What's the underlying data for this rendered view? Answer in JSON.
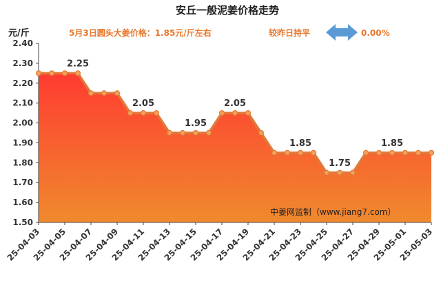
{
  "colors": {
    "line": "#e0793a",
    "marker_fill": "#f4a259",
    "area_top": "#ff3b30",
    "area_bottom": "#f08a2e",
    "subtitle": "#e8762b",
    "arrow": "#5b9bd5"
  },
  "header": {
    "title": "安丘一般泥姜价格走势",
    "subtitle_left": "5月3日圆头大姜价格：1.85元/斤左右",
    "subtitle_right": "较昨日持平",
    "change": "0.00%",
    "arrow_icon": "double-arrow-icon"
  },
  "watermark": "中姜网监制（www.jiang7.com）",
  "chart_data": {
    "type": "area",
    "title": "安丘一般泥姜价格走势",
    "ylabel": "元/斤",
    "xlabel": "",
    "ylim": [
      1.5,
      2.4
    ],
    "yticks": [
      "2.40",
      "2.30",
      "2.20",
      "2.10",
      "2.00",
      "1.90",
      "1.80",
      "1.70",
      "1.60",
      "1.50"
    ],
    "ytick_values": [
      2.4,
      2.3,
      2.2,
      2.1,
      2.0,
      1.9,
      1.8,
      1.7,
      1.6,
      1.5
    ],
    "x_labels": [
      "25-04-03",
      "25-04-05",
      "25-04-07",
      "25-04-09",
      "25-04-11",
      "25-04-13",
      "25-04-15",
      "25-04-17",
      "25-04-19",
      "25-04-21",
      "25-04-23",
      "25-04-25",
      "25-04-27",
      "25-04-29",
      "25-05-01",
      "25-05-03"
    ],
    "values": [
      2.25,
      2.25,
      2.25,
      2.25,
      2.15,
      2.15,
      2.15,
      2.05,
      2.05,
      2.05,
      1.95,
      1.95,
      1.95,
      1.95,
      2.05,
      2.05,
      2.05,
      1.95,
      1.85,
      1.85,
      1.85,
      1.85,
      1.75,
      1.75,
      1.75,
      1.85,
      1.85,
      1.85,
      1.85,
      1.85,
      1.85
    ],
    "data_labels": [
      {
        "index": 3,
        "text": "2.25"
      },
      {
        "index": 8,
        "text": "2.05"
      },
      {
        "index": 12,
        "text": "1.95"
      },
      {
        "index": 15,
        "text": "2.05"
      },
      {
        "index": 20,
        "text": "1.85"
      },
      {
        "index": 23,
        "text": "1.75"
      },
      {
        "index": 27,
        "text": "1.85"
      }
    ],
    "grid": false
  }
}
